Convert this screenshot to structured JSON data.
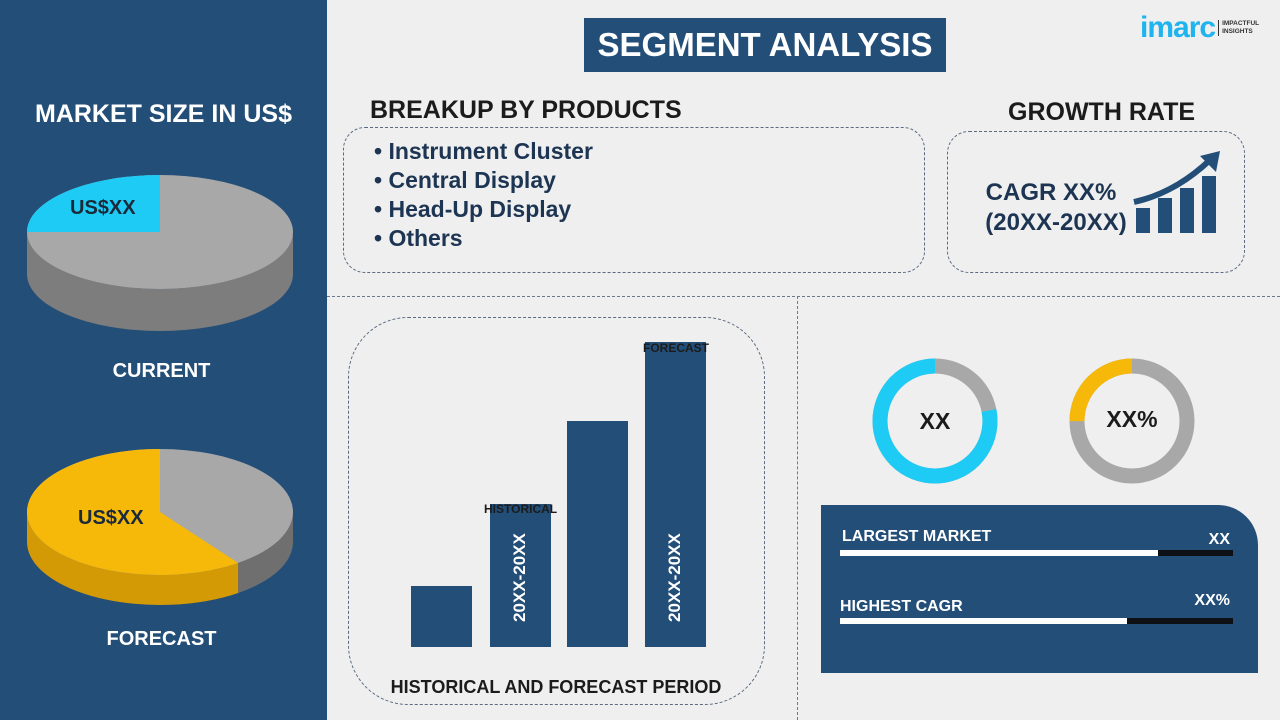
{
  "title": "SEGMENT ANALYSIS",
  "logo": {
    "brand": "imarc",
    "tagline_1": "IMPACTFUL",
    "tagline_2": "INSIGHTS"
  },
  "colors": {
    "navy": "#234e78",
    "cyan": "#1ecbf5",
    "yellow": "#f6b90a",
    "gray": "#a8a8a8"
  },
  "left": {
    "heading": "MARKET SIZE IN US$",
    "current": {
      "label": "CURRENT",
      "value": "US$XX",
      "share": 0.25
    },
    "forecast": {
      "label": "FORECAST",
      "value": "US$XX",
      "share": 0.6
    }
  },
  "products": {
    "heading": "BREAKUP BY PRODUCTS",
    "items": [
      "Instrument Cluster",
      "Central Display",
      "Head-Up Display",
      "Others"
    ]
  },
  "growth": {
    "heading": "GROWTH RATE",
    "cagr": "CAGR XX%",
    "period": "(20XX-20XX)"
  },
  "period_chart": {
    "title": "HISTORICAL AND FORECAST PERIOD",
    "historical_label": "HISTORICAL",
    "forecast_label": "FORECAST",
    "bars": [
      {
        "value": 20,
        "label": ""
      },
      {
        "value": 47,
        "label": "20XX-20XX"
      },
      {
        "value": 74,
        "label": ""
      },
      {
        "value": 100,
        "label": "20XX-20XX"
      }
    ]
  },
  "donuts": [
    {
      "label": "XX",
      "share": 0.78,
      "color": "#1ecbf5"
    },
    {
      "label": "XX%",
      "share": 0.25,
      "color": "#f6b90a"
    }
  ],
  "stats": [
    {
      "label": "LARGEST MARKET",
      "value": "XX",
      "fill": 0.81
    },
    {
      "label": "HIGHEST CAGR",
      "value": "XX%",
      "fill": 0.73
    }
  ]
}
